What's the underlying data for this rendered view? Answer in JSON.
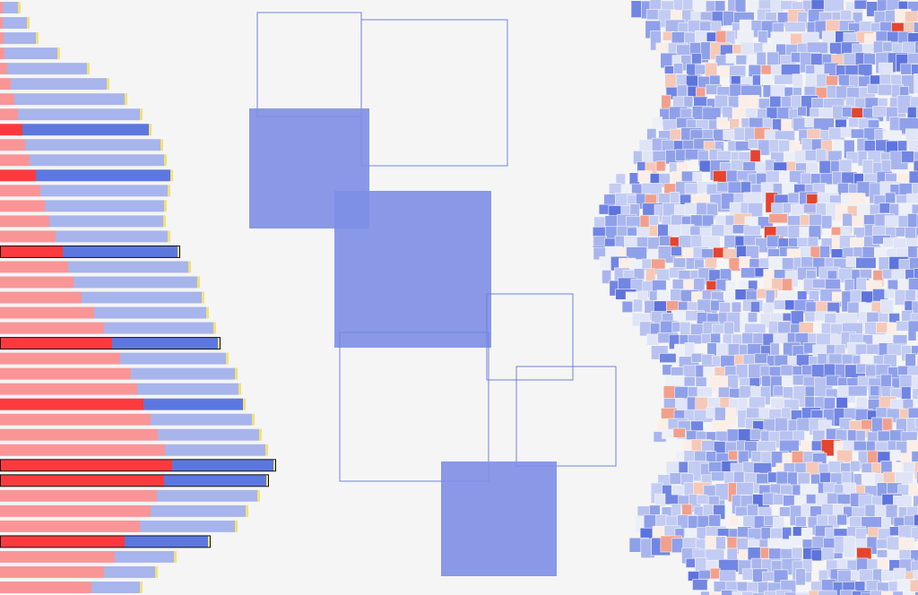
{
  "chart_data": {
    "type": "bar",
    "orientation": "horizontal",
    "stacked": true,
    "series": [
      {
        "color": "#f99597",
        "highlight_color": "#fc3a3e",
        "values": [
          3,
          3,
          4,
          5,
          8,
          12,
          16,
          20,
          25,
          28,
          33,
          40,
          45,
          50,
          55,
          62,
          70,
          76,
          82,
          91,
          105,
          116,
          125,
          134,
          146,
          153,
          160,
          168,
          176,
          184,
          192,
          183,
          175,
          168,
          156,
          139,
          128,
          116,
          102
        ]
      },
      {
        "color": "#a7b5ec",
        "highlight_color": "#5c78e0",
        "values": [
          17,
          27,
          36,
          59,
          89,
          107,
          123,
          136,
          141,
          151,
          150,
          150,
          142,
          133,
          127,
          125,
          128,
          134,
          138,
          134,
          125,
          122,
          118,
          118,
          116,
          113,
          111,
          113,
          113,
          112,
          113,
          114,
          112,
          106,
          106,
          93,
          66,
          57,
          54
        ]
      }
    ],
    "highlighted": [
      8,
      11,
      16,
      22,
      26,
      30,
      31,
      35
    ],
    "outlined": [
      16,
      22,
      30,
      31,
      35
    ],
    "tip_color": "#f3df7a"
  }
}
